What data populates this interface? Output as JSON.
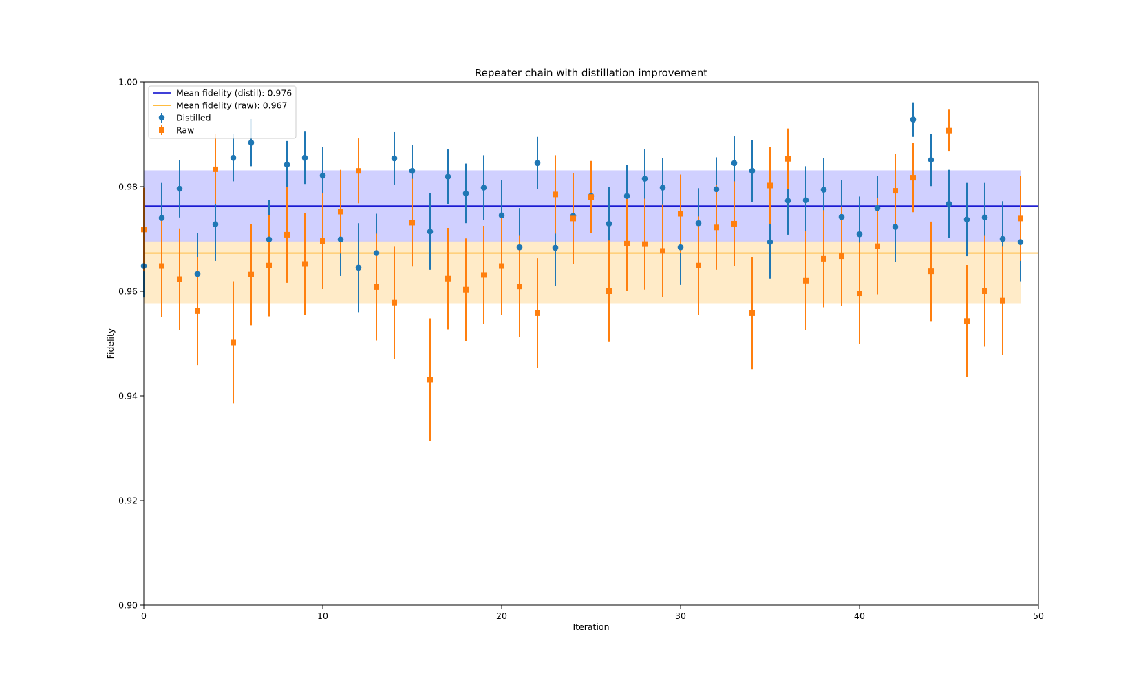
{
  "chart_data": {
    "type": "scatter",
    "title": "Repeater chain with distillation improvement",
    "xlabel": "Iteration",
    "ylabel": "Fidelity",
    "xlim": [
      0,
      50
    ],
    "ylim": [
      0.9,
      1.0
    ],
    "xticks": [
      "0",
      "10",
      "20",
      "30",
      "40",
      "50"
    ],
    "yticks": [
      "0.90",
      "0.92",
      "0.94",
      "0.96",
      "0.98",
      "1.00"
    ],
    "grid": false,
    "legend_position": "top-left",
    "legend": {
      "mean_distil": "Mean fidelity (distil): 0.976",
      "mean_raw": "Mean fidelity (raw): 0.967",
      "distilled": "Distilled",
      "raw": "Raw"
    },
    "mean_lines": [
      {
        "name": "Mean fidelity (distil): 0.976",
        "value": 0.9763,
        "color": "#0000cc",
        "band": [
          0.9695,
          0.9831
        ],
        "band_color": "#c8c8ff"
      },
      {
        "name": "Mean fidelity (raw): 0.967",
        "value": 0.9673,
        "color": "#ffa500",
        "band": [
          0.9577,
          0.9697
        ],
        "band_color": "#ffebc8"
      }
    ],
    "series": [
      {
        "name": "Distilled",
        "marker": "circle",
        "color": "#1f77b4",
        "x": [
          0,
          1,
          2,
          3,
          4,
          5,
          6,
          7,
          8,
          9,
          10,
          11,
          12,
          13,
          14,
          15,
          16,
          17,
          18,
          19,
          20,
          21,
          22,
          23,
          24,
          25,
          26,
          27,
          28,
          29,
          30,
          31,
          32,
          33,
          34,
          35,
          36,
          37,
          38,
          39,
          40,
          41,
          42,
          43,
          44,
          45,
          46,
          47,
          48,
          49
        ],
        "y": [
          0.9648,
          0.974,
          0.9796,
          0.9633,
          0.9728,
          0.9855,
          0.9884,
          0.9699,
          0.9842,
          0.9855,
          0.9821,
          0.9699,
          0.9645,
          0.9673,
          0.9854,
          0.983,
          0.9714,
          0.9819,
          0.9787,
          0.9798,
          0.9745,
          0.9684,
          0.9845,
          0.9683,
          0.9744,
          0.9782,
          0.9729,
          0.9782,
          0.9815,
          0.9798,
          0.9684,
          0.973,
          0.9795,
          0.9845,
          0.983,
          0.9694,
          0.9773,
          0.9774,
          0.9794,
          0.9742,
          0.9709,
          0.9759,
          0.9723,
          0.9928,
          0.9851,
          0.9767,
          0.9737,
          0.9741,
          0.97,
          0.9694
        ],
        "err": [
          0.006,
          0.0067,
          0.0055,
          0.0078,
          0.007,
          0.0045,
          0.0045,
          0.0075,
          0.0045,
          0.005,
          0.0055,
          0.007,
          0.0085,
          0.0075,
          0.005,
          0.005,
          0.0073,
          0.0052,
          0.0057,
          0.0062,
          0.0067,
          0.0075,
          0.005,
          0.0073,
          0.0045,
          0.0035,
          0.007,
          0.006,
          0.0057,
          0.0057,
          0.0072,
          0.0067,
          0.0061,
          0.0051,
          0.0059,
          0.007,
          0.0065,
          0.0065,
          0.006,
          0.007,
          0.0072,
          0.0062,
          0.0067,
          0.0033,
          0.005,
          0.0065,
          0.007,
          0.0066,
          0.0072,
          0.0075
        ]
      },
      {
        "name": "Raw",
        "marker": "square",
        "color": "#ff7f0e",
        "x": [
          0,
          1,
          2,
          3,
          4,
          5,
          6,
          7,
          8,
          9,
          10,
          11,
          12,
          13,
          14,
          15,
          16,
          17,
          18,
          19,
          20,
          21,
          22,
          23,
          24,
          25,
          26,
          27,
          28,
          29,
          30,
          31,
          32,
          33,
          34,
          35,
          36,
          37,
          38,
          39,
          40,
          41,
          42,
          43,
          44,
          45,
          46,
          47,
          48,
          49
        ],
        "y": [
          0.9718,
          0.9648,
          0.9623,
          0.9562,
          0.9833,
          0.9502,
          0.9632,
          0.9649,
          0.9708,
          0.9652,
          0.9696,
          0.9752,
          0.983,
          0.9608,
          0.9578,
          0.9731,
          0.9431,
          0.9624,
          0.9603,
          0.9631,
          0.9648,
          0.9609,
          0.9558,
          0.9785,
          0.9739,
          0.978,
          0.96,
          0.9691,
          0.969,
          0.9677,
          0.9748,
          0.9649,
          0.9722,
          0.9729,
          0.9558,
          0.9802,
          0.9853,
          0.962,
          0.9662,
          0.9667,
          0.9596,
          0.9686,
          0.9792,
          0.9817,
          0.9638,
          0.9907,
          0.9543,
          0.96,
          0.9582,
          0.9739
        ],
        "err": [
          0.008,
          0.0097,
          0.0097,
          0.0103,
          0.0067,
          0.0117,
          0.0097,
          0.0097,
          0.0092,
          0.0097,
          0.0092,
          0.008,
          0.0062,
          0.0102,
          0.0107,
          0.0084,
          0.0117,
          0.0097,
          0.0098,
          0.0094,
          0.0094,
          0.0097,
          0.0105,
          0.0075,
          0.0087,
          0.0069,
          0.0097,
          0.009,
          0.0087,
          0.0088,
          0.0075,
          0.0094,
          0.0081,
          0.0081,
          0.0107,
          0.0073,
          0.0058,
          0.0095,
          0.0093,
          0.0095,
          0.0097,
          0.0092,
          0.0071,
          0.0066,
          0.0095,
          0.004,
          0.0107,
          0.0106,
          0.0103,
          0.0081
        ]
      }
    ]
  }
}
